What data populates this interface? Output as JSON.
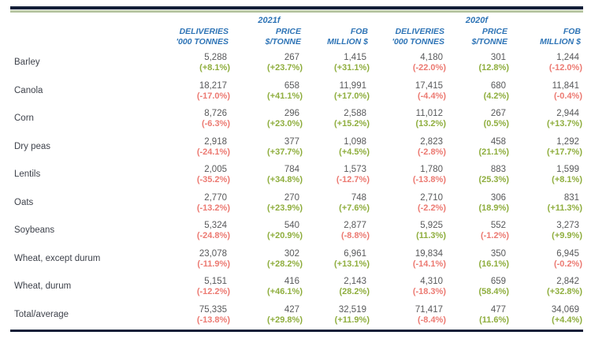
{
  "colors": {
    "header_blue": "#2e74b6",
    "value_gray": "#58595b",
    "label_gray": "#3f434c",
    "positive_green": "#8fae3e",
    "negative_red": "#ec7a72",
    "border_navy": "#131f38",
    "border_sage": "#b7c6a2"
  },
  "table": {
    "year_groups": [
      {
        "year": "2021f",
        "columns": [
          {
            "line1": "DELIVERIES",
            "line2": "'000 TONNES"
          },
          {
            "line1": "PRICE",
            "line2": "$/TONNE"
          },
          {
            "line1": "FOB",
            "line2": "MILLION $"
          }
        ]
      },
      {
        "year": "2020f",
        "columns": [
          {
            "line1": "DELIVERIES",
            "line2": "'000 TONNES"
          },
          {
            "line1": "PRICE",
            "line2": "$/TONNE"
          },
          {
            "line1": "FOB",
            "line2": "MILLION $"
          }
        ]
      }
    ],
    "rows": [
      {
        "label": "Barley",
        "cells": [
          {
            "v": "5,288",
            "p": "(+8.1%)",
            "dir": "pos"
          },
          {
            "v": "267",
            "p": "(+23.7%)",
            "dir": "pos"
          },
          {
            "v": "1,415",
            "p": "(+31.1%)",
            "dir": "pos"
          },
          {
            "v": "4,180",
            "p": "(-22.0%)",
            "dir": "neg"
          },
          {
            "v": "301",
            "p": "(12.8%)",
            "dir": "pos"
          },
          {
            "v": "1,244",
            "p": "(-12.0%)",
            "dir": "neg"
          }
        ]
      },
      {
        "label": "Canola",
        "cells": [
          {
            "v": "18,217",
            "p": "(-17.0%)",
            "dir": "neg"
          },
          {
            "v": "658",
            "p": "(+41.1%)",
            "dir": "pos"
          },
          {
            "v": "11,991",
            "p": "(+17.0%)",
            "dir": "pos"
          },
          {
            "v": "17,415",
            "p": "(-4.4%)",
            "dir": "neg"
          },
          {
            "v": "680",
            "p": "(4.2%)",
            "dir": "pos"
          },
          {
            "v": "11,841",
            "p": "(-0.4%)",
            "dir": "neg"
          }
        ]
      },
      {
        "label": "Corn",
        "cells": [
          {
            "v": "8,726",
            "p": "(-6.3%)",
            "dir": "neg"
          },
          {
            "v": "296",
            "p": "(+23.0%)",
            "dir": "pos"
          },
          {
            "v": "2,588",
            "p": "(+15.2%)",
            "dir": "pos"
          },
          {
            "v": "11,012",
            "p": "(13.2%)",
            "dir": "pos"
          },
          {
            "v": "267",
            "p": "(0.5%)",
            "dir": "pos"
          },
          {
            "v": "2,944",
            "p": "(+13.7%)",
            "dir": "pos"
          }
        ]
      },
      {
        "label": "Dry peas",
        "cells": [
          {
            "v": "2,918",
            "p": "(-24.1%)",
            "dir": "neg"
          },
          {
            "v": "377",
            "p": "(+37.7%)",
            "dir": "pos"
          },
          {
            "v": "1,098",
            "p": "(+4.5%)",
            "dir": "pos"
          },
          {
            "v": "2,823",
            "p": "(-2.8%)",
            "dir": "neg"
          },
          {
            "v": "458",
            "p": "(21.1%)",
            "dir": "pos"
          },
          {
            "v": "1,292",
            "p": "(+17.7%)",
            "dir": "pos"
          }
        ]
      },
      {
        "label": "Lentils",
        "cells": [
          {
            "v": "2,005",
            "p": "(-35.2%)",
            "dir": "neg"
          },
          {
            "v": "784",
            "p": "(+34.8%)",
            "dir": "pos"
          },
          {
            "v": "1,573",
            "p": "(-12.7%)",
            "dir": "neg"
          },
          {
            "v": "1,780",
            "p": "(-13.8%)",
            "dir": "neg"
          },
          {
            "v": "883",
            "p": "(25.3%)",
            "dir": "pos"
          },
          {
            "v": "1,599",
            "p": "(+8.1%)",
            "dir": "pos"
          }
        ]
      },
      {
        "label": "Oats",
        "cells": [
          {
            "v": "2,770",
            "p": "(-13.2%)",
            "dir": "neg"
          },
          {
            "v": "270",
            "p": "(+23.9%)",
            "dir": "pos"
          },
          {
            "v": "748",
            "p": "(+7.6%)",
            "dir": "pos"
          },
          {
            "v": "2,710",
            "p": "(-2.2%)",
            "dir": "neg"
          },
          {
            "v": "306",
            "p": "(18.9%)",
            "dir": "pos"
          },
          {
            "v": "831",
            "p": "(+11.3%)",
            "dir": "pos"
          }
        ]
      },
      {
        "label": "Soybeans",
        "cells": [
          {
            "v": "5,324",
            "p": "(-24.8%)",
            "dir": "neg"
          },
          {
            "v": "540",
            "p": "(+20.9%)",
            "dir": "pos"
          },
          {
            "v": "2,877",
            "p": "(-8.8%)",
            "dir": "neg"
          },
          {
            "v": "5,925",
            "p": "(11.3%)",
            "dir": "pos"
          },
          {
            "v": "552",
            "p": "(-1.2%)",
            "dir": "neg"
          },
          {
            "v": "3,273",
            "p": "(+9.9%)",
            "dir": "pos"
          }
        ]
      },
      {
        "label": "Wheat, except durum",
        "cells": [
          {
            "v": "23,078",
            "p": "(-11.9%)",
            "dir": "neg"
          },
          {
            "v": "302",
            "p": "(+28.2%)",
            "dir": "pos"
          },
          {
            "v": "6,961",
            "p": "(+13.1%)",
            "dir": "pos"
          },
          {
            "v": "19,834",
            "p": "(-14.1%)",
            "dir": "neg"
          },
          {
            "v": "350",
            "p": "(16.1%)",
            "dir": "pos"
          },
          {
            "v": "6,945",
            "p": "(-0.2%)",
            "dir": "neg"
          }
        ]
      },
      {
        "label": "Wheat, durum",
        "cells": [
          {
            "v": "5,151",
            "p": "(-12.2%)",
            "dir": "neg"
          },
          {
            "v": "416",
            "p": "(+46.1%)",
            "dir": "pos"
          },
          {
            "v": "2,143",
            "p": "(28.2%)",
            "dir": "pos"
          },
          {
            "v": "4,310",
            "p": "(-18.3%)",
            "dir": "neg"
          },
          {
            "v": "659",
            "p": "(58.4%)",
            "dir": "pos"
          },
          {
            "v": "2,842",
            "p": "(+32.8%)",
            "dir": "pos"
          }
        ]
      },
      {
        "label": "Total/average",
        "cells": [
          {
            "v": "75,335",
            "p": "(-13.8%)",
            "dir": "neg"
          },
          {
            "v": "427",
            "p": "(+29.8%)",
            "dir": "pos"
          },
          {
            "v": "32,519",
            "p": "(+11.9%)",
            "dir": "pos"
          },
          {
            "v": "71,417",
            "p": "(-8.4%)",
            "dir": "neg"
          },
          {
            "v": "477",
            "p": "(11.6%)",
            "dir": "pos"
          },
          {
            "v": "34,069",
            "p": "(+4.4%)",
            "dir": "pos"
          }
        ]
      }
    ]
  }
}
